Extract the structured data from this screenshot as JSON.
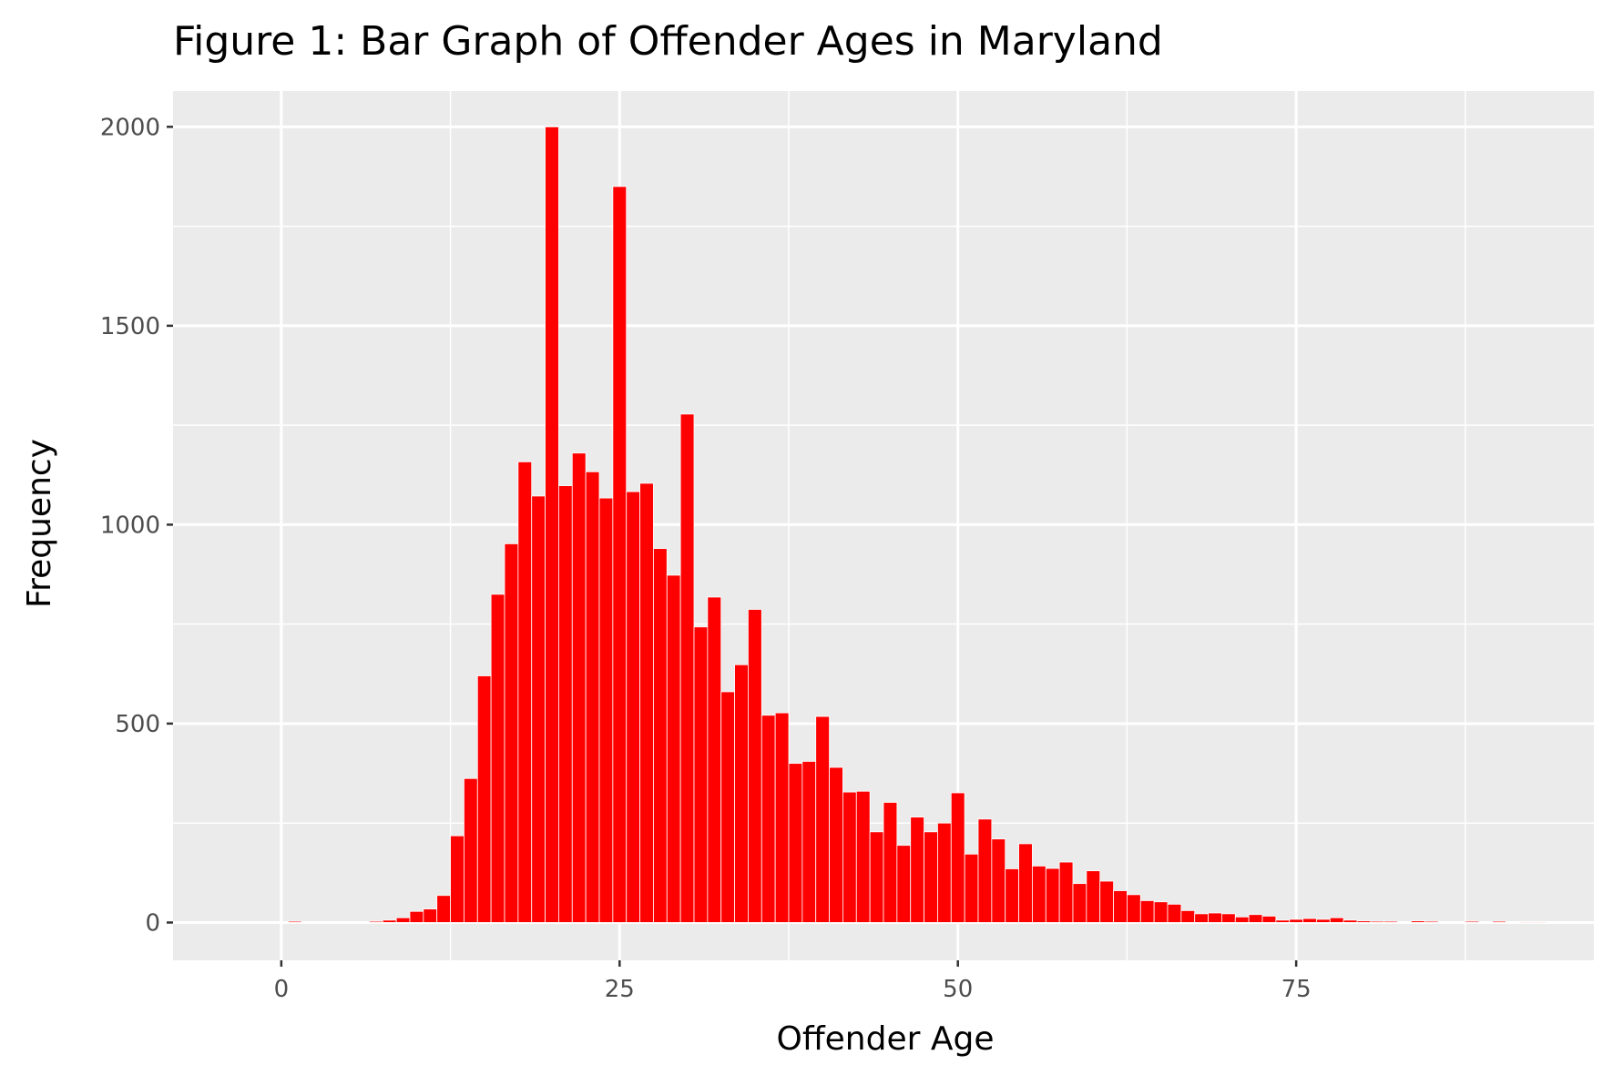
{
  "chart_data": {
    "type": "bar",
    "title": "Figure 1: Bar Graph of Offender Ages in Maryland",
    "xlabel": "Offender Age",
    "ylabel": "Frequency",
    "xlim": [
      -8,
      97
    ],
    "ylim": [
      -95,
      2090
    ],
    "xticks": [
      0,
      25,
      50,
      75
    ],
    "xtick_labels": [
      "0",
      "25",
      "50",
      "75"
    ],
    "yticks": [
      0,
      500,
      1000,
      1500,
      2000
    ],
    "ytick_labels": [
      "0",
      "500",
      "1000",
      "1500",
      "2000"
    ],
    "bar_color": "#ff0000",
    "bar_outline_color": "#ffffff",
    "panel_background": "#ebebeb",
    "grid": true,
    "grid_color": "#ffffff",
    "x": [
      1,
      7,
      8,
      9,
      10,
      11,
      12,
      13,
      14,
      15,
      16,
      17,
      18,
      19,
      20,
      21,
      22,
      23,
      24,
      25,
      26,
      27,
      28,
      29,
      30,
      31,
      32,
      33,
      34,
      35,
      36,
      37,
      38,
      39,
      40,
      41,
      42,
      43,
      44,
      45,
      46,
      47,
      48,
      49,
      50,
      51,
      52,
      53,
      54,
      55,
      56,
      57,
      58,
      59,
      60,
      61,
      62,
      63,
      64,
      65,
      66,
      67,
      68,
      69,
      70,
      71,
      72,
      73,
      74,
      75,
      76,
      77,
      78,
      79,
      80,
      81,
      82,
      84,
      85,
      88,
      90,
      92,
      93
    ],
    "values": [
      3,
      3,
      6,
      12,
      28,
      34,
      68,
      218,
      362,
      620,
      825,
      952,
      1158,
      1072,
      2000,
      1098,
      1180,
      1133,
      1067,
      1850,
      1083,
      1104,
      940,
      873,
      1278,
      743,
      818,
      580,
      648,
      787,
      521,
      527,
      400,
      405,
      518,
      390,
      328,
      330,
      228,
      302,
      194,
      265,
      228,
      250,
      326,
      172,
      260,
      210,
      135,
      198,
      142,
      136,
      152,
      98,
      130,
      104,
      80,
      70,
      55,
      52,
      46,
      30,
      22,
      24,
      22,
      14,
      20,
      16,
      6,
      8,
      10,
      8,
      12,
      6,
      4,
      3,
      3,
      4,
      3,
      3,
      3,
      2,
      2
    ]
  }
}
